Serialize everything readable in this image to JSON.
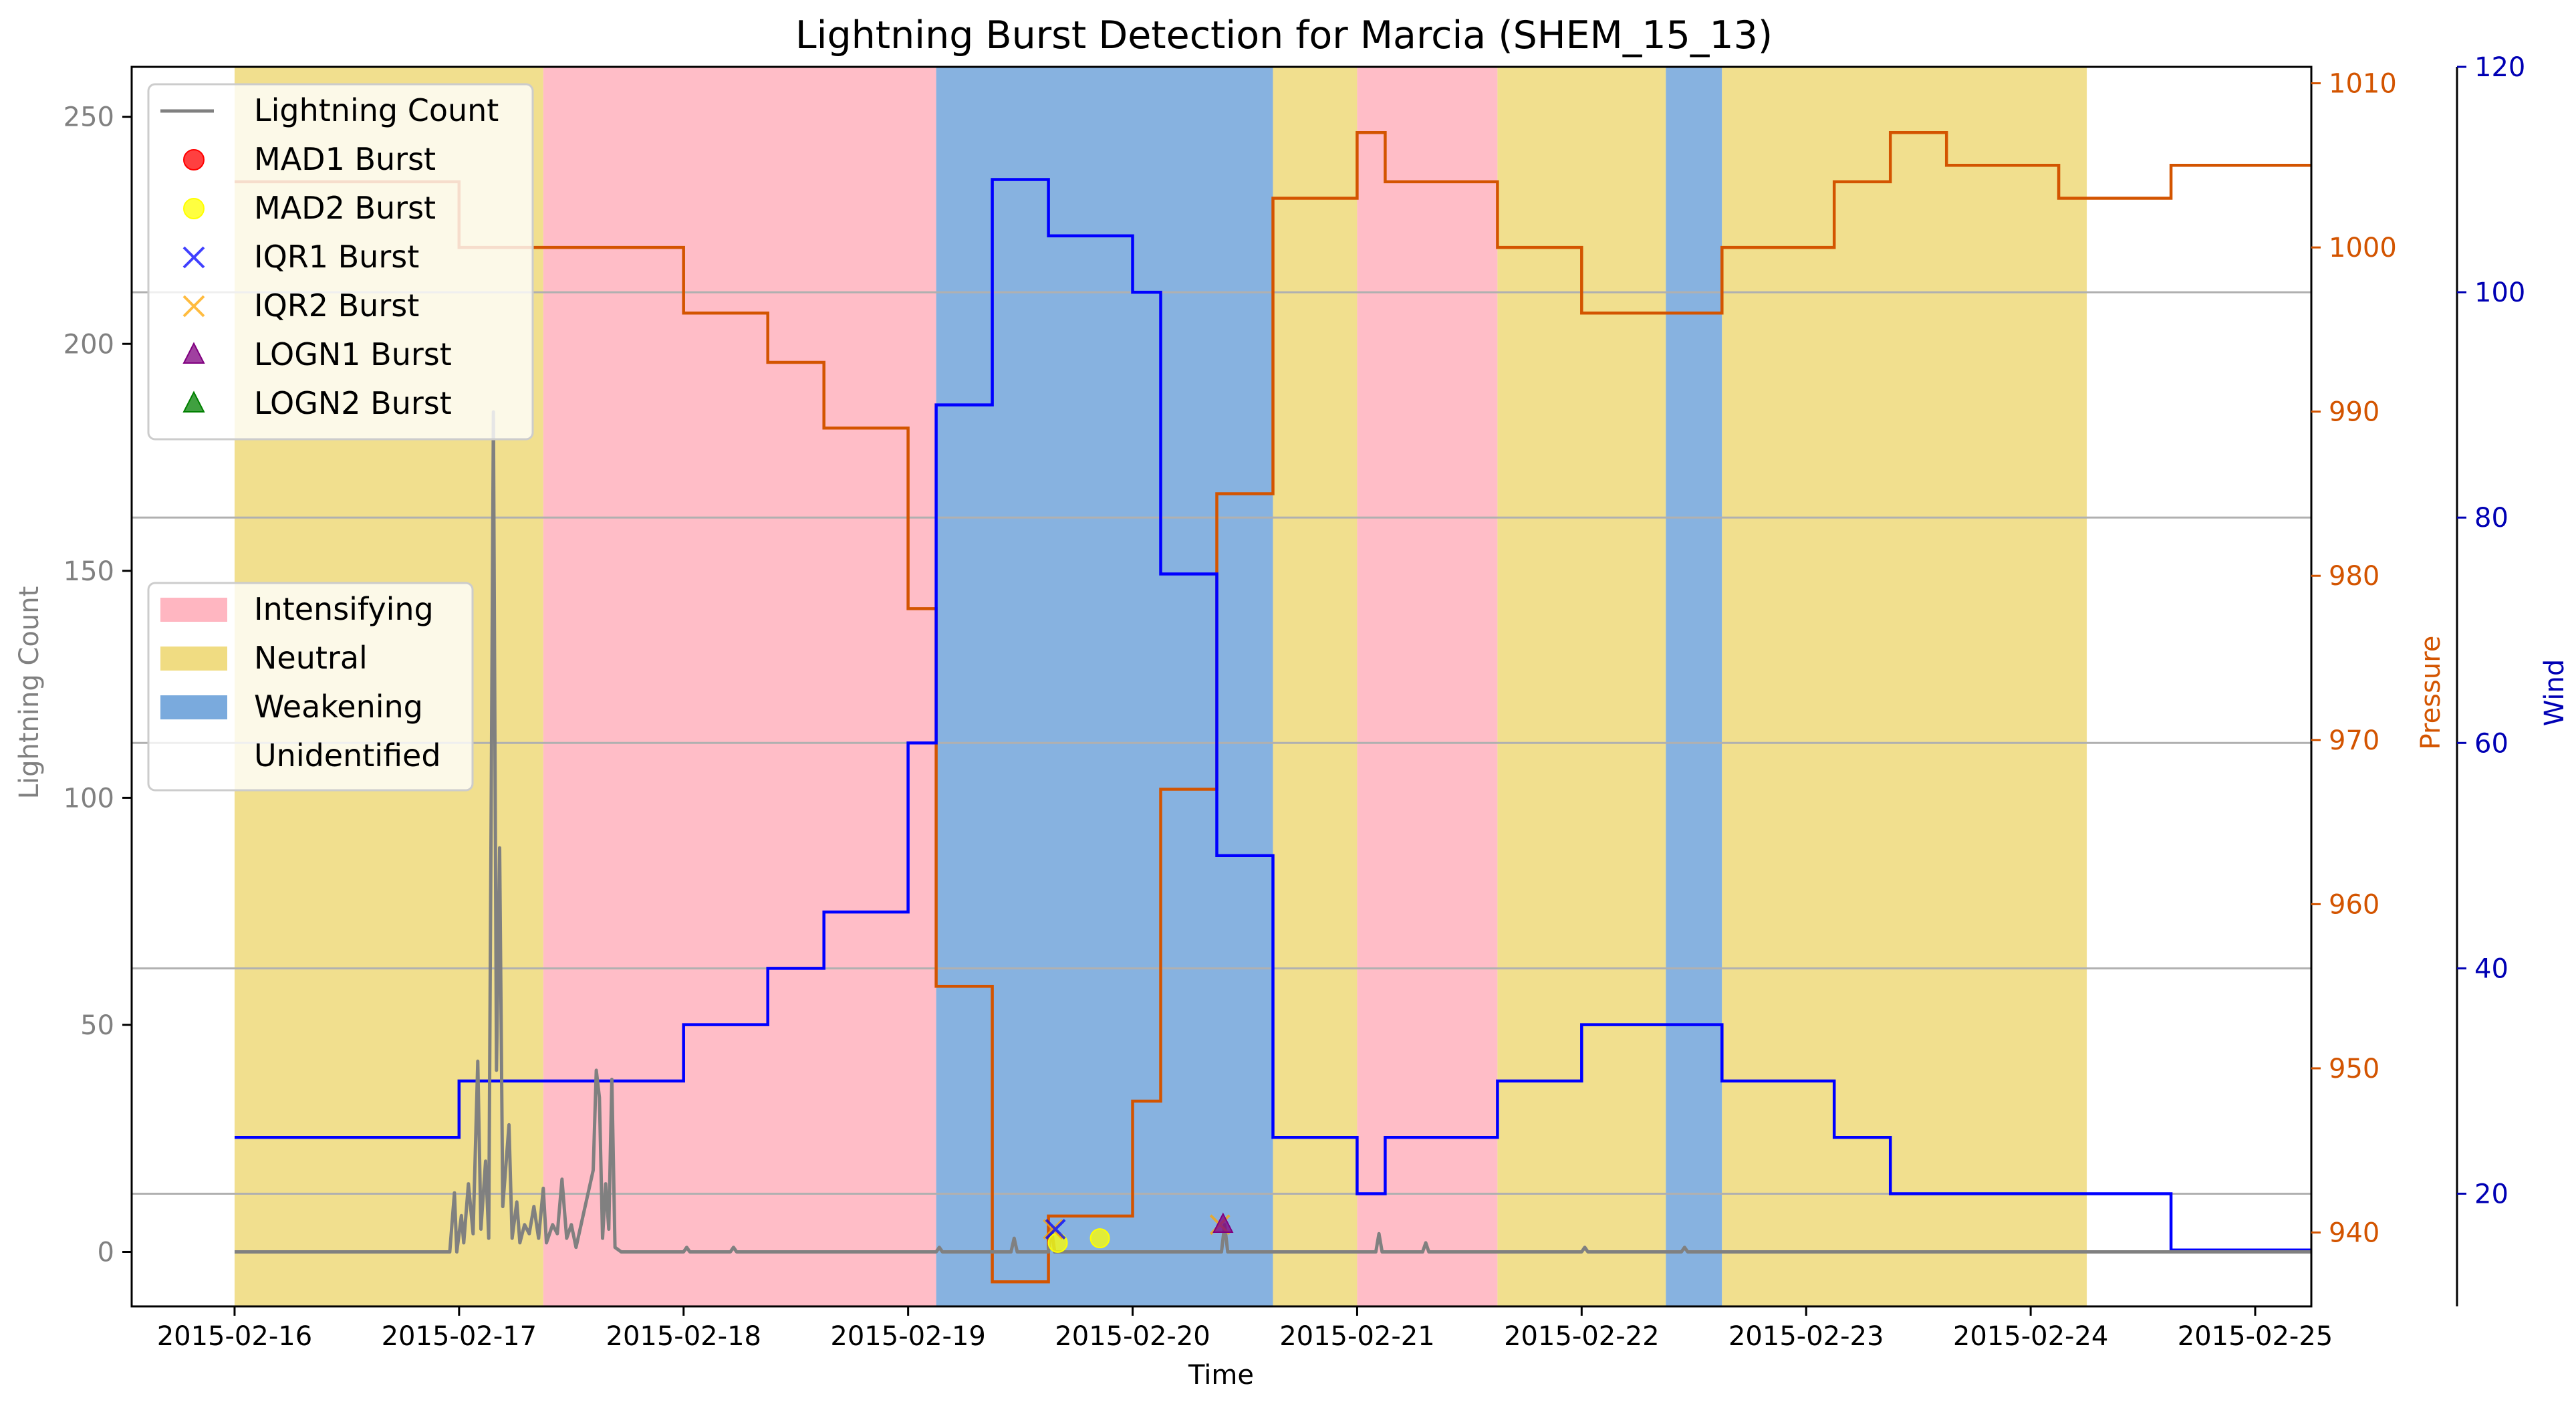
{
  "chart_data": {
    "type": "line",
    "title": "Lightning Burst Detection for Marcia (SHEM_15_13)",
    "xlabel": "Time",
    "ylabel_left": "Lightning Count",
    "ylabel_right1": "Pressure",
    "ylabel_right2": "Wind",
    "x_range": [
      "2015-02-15T13:00",
      "2015-02-25T06:00"
    ],
    "x_ticks": [
      "2015-02-16",
      "2015-02-17",
      "2015-02-18",
      "2015-02-19",
      "2015-02-20",
      "2015-02-21",
      "2015-02-22",
      "2015-02-23",
      "2015-02-24",
      "2015-02-25"
    ],
    "ylim_left": [
      -12,
      261
    ],
    "yticks_left": [
      0,
      50,
      100,
      150,
      200,
      250
    ],
    "ylim_pressure": [
      935.5,
      1011
    ],
    "yticks_pressure": [
      940,
      950,
      960,
      970,
      980,
      990,
      1000,
      1010
    ],
    "ylim_wind": [
      10,
      120
    ],
    "yticks_wind": [
      20,
      40,
      60,
      80,
      100,
      120
    ],
    "grid": "horizontal lines at wind ticks",
    "colors": {
      "lightning": "#808080",
      "pressure": "#d35400",
      "wind": "#0000ff",
      "intensifying": "#ffb6c1",
      "neutral": "#f0dc82",
      "weakening": "#7aaadd",
      "unidentified": "#ffffff",
      "mad1": "#ff0000",
      "mad2": "#ffff00",
      "iqr1": "#0000ff",
      "iqr2": "#ffa500",
      "logn1": "#800080",
      "logn2": "#008000"
    },
    "phases": [
      {
        "label": "Neutral",
        "start": "2015-02-16T00:00",
        "end": "2015-02-17T09:00"
      },
      {
        "label": "Intensifying",
        "start": "2015-02-17T09:00",
        "end": "2015-02-19T03:00"
      },
      {
        "label": "Weakening",
        "start": "2015-02-19T03:00",
        "end": "2015-02-20T15:00"
      },
      {
        "label": "Neutral",
        "start": "2015-02-20T15:00",
        "end": "2015-02-21T00:00"
      },
      {
        "label": "Intensifying",
        "start": "2015-02-21T00:00",
        "end": "2015-02-21T15:00"
      },
      {
        "label": "Neutral",
        "start": "2015-02-21T15:00",
        "end": "2015-02-22T09:00"
      },
      {
        "label": "Weakening",
        "start": "2015-02-22T09:00",
        "end": "2015-02-22T15:00"
      },
      {
        "label": "Neutral",
        "start": "2015-02-22T15:00",
        "end": "2015-02-24T06:00"
      }
    ],
    "series": [
      {
        "name": "Pressure",
        "axis": "pressure",
        "points": [
          [
            "2015-02-16T00:00",
            1004
          ],
          [
            "2015-02-17T00:00",
            1000
          ],
          [
            "2015-02-18T00:00",
            996
          ],
          [
            "2015-02-18T09:00",
            993
          ],
          [
            "2015-02-18T15:00",
            989
          ],
          [
            "2015-02-19T00:00",
            978
          ],
          [
            "2015-02-19T03:00",
            955
          ],
          [
            "2015-02-19T09:00",
            937
          ],
          [
            "2015-02-19T15:00",
            941
          ],
          [
            "2015-02-20T00:00",
            948
          ],
          [
            "2015-02-20T03:00",
            967
          ],
          [
            "2015-02-20T09:00",
            985
          ],
          [
            "2015-02-20T15:00",
            1003
          ],
          [
            "2015-02-21T00:00",
            1007
          ],
          [
            "2015-02-21T03:00",
            1004
          ],
          [
            "2015-02-21T15:00",
            1000
          ],
          [
            "2015-02-22T00:00",
            996
          ],
          [
            "2015-02-22T15:00",
            1000
          ],
          [
            "2015-02-23T03:00",
            1004
          ],
          [
            "2015-02-23T09:00",
            1007
          ],
          [
            "2015-02-23T15:00",
            1005
          ],
          [
            "2015-02-24T03:00",
            1003
          ],
          [
            "2015-02-24T15:00",
            1005
          ],
          [
            "2015-02-25T06:00",
            1005
          ]
        ]
      },
      {
        "name": "Wind",
        "axis": "wind",
        "points": [
          [
            "2015-02-16T00:00",
            25
          ],
          [
            "2015-02-17T00:00",
            30
          ],
          [
            "2015-02-18T00:00",
            35
          ],
          [
            "2015-02-18T09:00",
            40
          ],
          [
            "2015-02-18T15:00",
            45
          ],
          [
            "2015-02-19T00:00",
            60
          ],
          [
            "2015-02-19T03:00",
            90
          ],
          [
            "2015-02-19T09:00",
            110
          ],
          [
            "2015-02-19T15:00",
            105
          ],
          [
            "2015-02-20T00:00",
            100
          ],
          [
            "2015-02-20T03:00",
            75
          ],
          [
            "2015-02-20T09:00",
            50
          ],
          [
            "2015-02-20T15:00",
            25
          ],
          [
            "2015-02-21T00:00",
            20
          ],
          [
            "2015-02-21T03:00",
            25
          ],
          [
            "2015-02-21T15:00",
            30
          ],
          [
            "2015-02-22T00:00",
            35
          ],
          [
            "2015-02-22T15:00",
            30
          ],
          [
            "2015-02-23T03:00",
            25
          ],
          [
            "2015-02-23T09:00",
            20
          ],
          [
            "2015-02-24T15:00",
            15
          ],
          [
            "2015-02-25T06:00",
            15
          ]
        ]
      },
      {
        "name": "Lightning Count",
        "axis": "left",
        "points": [
          [
            "2015-02-16T00:00",
            0
          ],
          [
            "2015-02-16T23:00",
            0
          ],
          [
            "2015-02-16T23:30",
            13
          ],
          [
            "2015-02-16T23:45",
            0
          ],
          [
            "2015-02-17T00:15",
            8
          ],
          [
            "2015-02-17T00:30",
            2
          ],
          [
            "2015-02-17T01:00",
            15
          ],
          [
            "2015-02-17T01:30",
            4
          ],
          [
            "2015-02-17T02:00",
            42
          ],
          [
            "2015-02-17T02:20",
            5
          ],
          [
            "2015-02-17T02:50",
            20
          ],
          [
            "2015-02-17T03:10",
            3
          ],
          [
            "2015-02-17T03:40",
            185
          ],
          [
            "2015-02-17T04:00",
            40
          ],
          [
            "2015-02-17T04:20",
            89
          ],
          [
            "2015-02-17T04:40",
            10
          ],
          [
            "2015-02-17T05:20",
            28
          ],
          [
            "2015-02-17T05:40",
            3
          ],
          [
            "2015-02-17T06:10",
            11
          ],
          [
            "2015-02-17T06:30",
            2
          ],
          [
            "2015-02-17T07:00",
            6
          ],
          [
            "2015-02-17T07:30",
            4
          ],
          [
            "2015-02-17T08:00",
            10
          ],
          [
            "2015-02-17T08:30",
            3
          ],
          [
            "2015-02-17T09:00",
            14
          ],
          [
            "2015-02-17T09:20",
            2
          ],
          [
            "2015-02-17T10:00",
            6
          ],
          [
            "2015-02-17T10:30",
            4
          ],
          [
            "2015-02-17T11:00",
            16
          ],
          [
            "2015-02-17T11:30",
            3
          ],
          [
            "2015-02-17T12:00",
            6
          ],
          [
            "2015-02-17T12:30",
            1
          ],
          [
            "2015-02-17T14:20",
            18
          ],
          [
            "2015-02-17T14:40",
            40
          ],
          [
            "2015-02-17T15:00",
            34
          ],
          [
            "2015-02-17T15:20",
            3
          ],
          [
            "2015-02-17T15:40",
            15
          ],
          [
            "2015-02-17T16:00",
            5
          ],
          [
            "2015-02-17T16:20",
            38
          ],
          [
            "2015-02-17T16:40",
            1
          ],
          [
            "2015-02-17T17:20",
            0
          ],
          [
            "2015-02-18T00:00",
            0
          ],
          [
            "2015-02-18T00:20",
            1
          ],
          [
            "2015-02-18T00:40",
            0
          ],
          [
            "2015-02-18T05:00",
            0
          ],
          [
            "2015-02-18T05:20",
            1
          ],
          [
            "2015-02-18T05:40",
            0
          ],
          [
            "2015-02-19T03:00",
            0
          ],
          [
            "2015-02-19T03:20",
            1
          ],
          [
            "2015-02-19T03:40",
            0
          ],
          [
            "2015-02-19T11:00",
            0
          ],
          [
            "2015-02-19T11:20",
            3
          ],
          [
            "2015-02-19T11:40",
            0
          ],
          [
            "2015-02-19T15:00",
            0
          ],
          [
            "2015-02-19T15:20",
            5
          ],
          [
            "2015-02-19T15:40",
            0
          ],
          [
            "2015-02-20T09:30",
            0
          ],
          [
            "2015-02-20T09:50",
            6
          ],
          [
            "2015-02-20T10:10",
            0
          ],
          [
            "2015-02-21T02:00",
            0
          ],
          [
            "2015-02-21T02:20",
            4
          ],
          [
            "2015-02-21T02:40",
            0
          ],
          [
            "2015-02-21T07:00",
            0
          ],
          [
            "2015-02-21T07:20",
            2
          ],
          [
            "2015-02-21T07:40",
            0
          ],
          [
            "2015-02-22T00:00",
            0
          ],
          [
            "2015-02-22T00:20",
            1
          ],
          [
            "2015-02-22T00:40",
            0
          ],
          [
            "2015-02-22T10:40",
            0
          ],
          [
            "2015-02-22T11:00",
            1
          ],
          [
            "2015-02-22T11:20",
            0
          ],
          [
            "2015-02-25T06:00",
            0
          ]
        ]
      }
    ],
    "bursts": [
      {
        "type": "MAD2 Burst",
        "points": [
          [
            "2015-02-19T16:00",
            2
          ],
          [
            "2015-02-19T20:30",
            3
          ]
        ]
      },
      {
        "type": "IQR2 Burst",
        "points": [
          [
            "2015-02-19T15:30",
            5
          ],
          [
            "2015-02-20T09:20",
            6
          ]
        ]
      },
      {
        "type": "IQR1 Burst",
        "points": [
          [
            "2015-02-19T15:45",
            5
          ]
        ]
      },
      {
        "type": "LOGN1 Burst",
        "points": [
          [
            "2015-02-20T09:40",
            6
          ]
        ]
      }
    ],
    "legend_markers": {
      "entries": [
        "Lightning Count",
        "MAD1 Burst",
        "MAD2 Burst",
        "IQR1 Burst",
        "IQR2 Burst",
        "LOGN1 Burst",
        "LOGN2 Burst"
      ],
      "placement": "upper-left"
    },
    "legend_phases": {
      "entries": [
        "Intensifying",
        "Neutral",
        "Weakening",
        "Unidentified"
      ],
      "placement": "center-left"
    }
  }
}
